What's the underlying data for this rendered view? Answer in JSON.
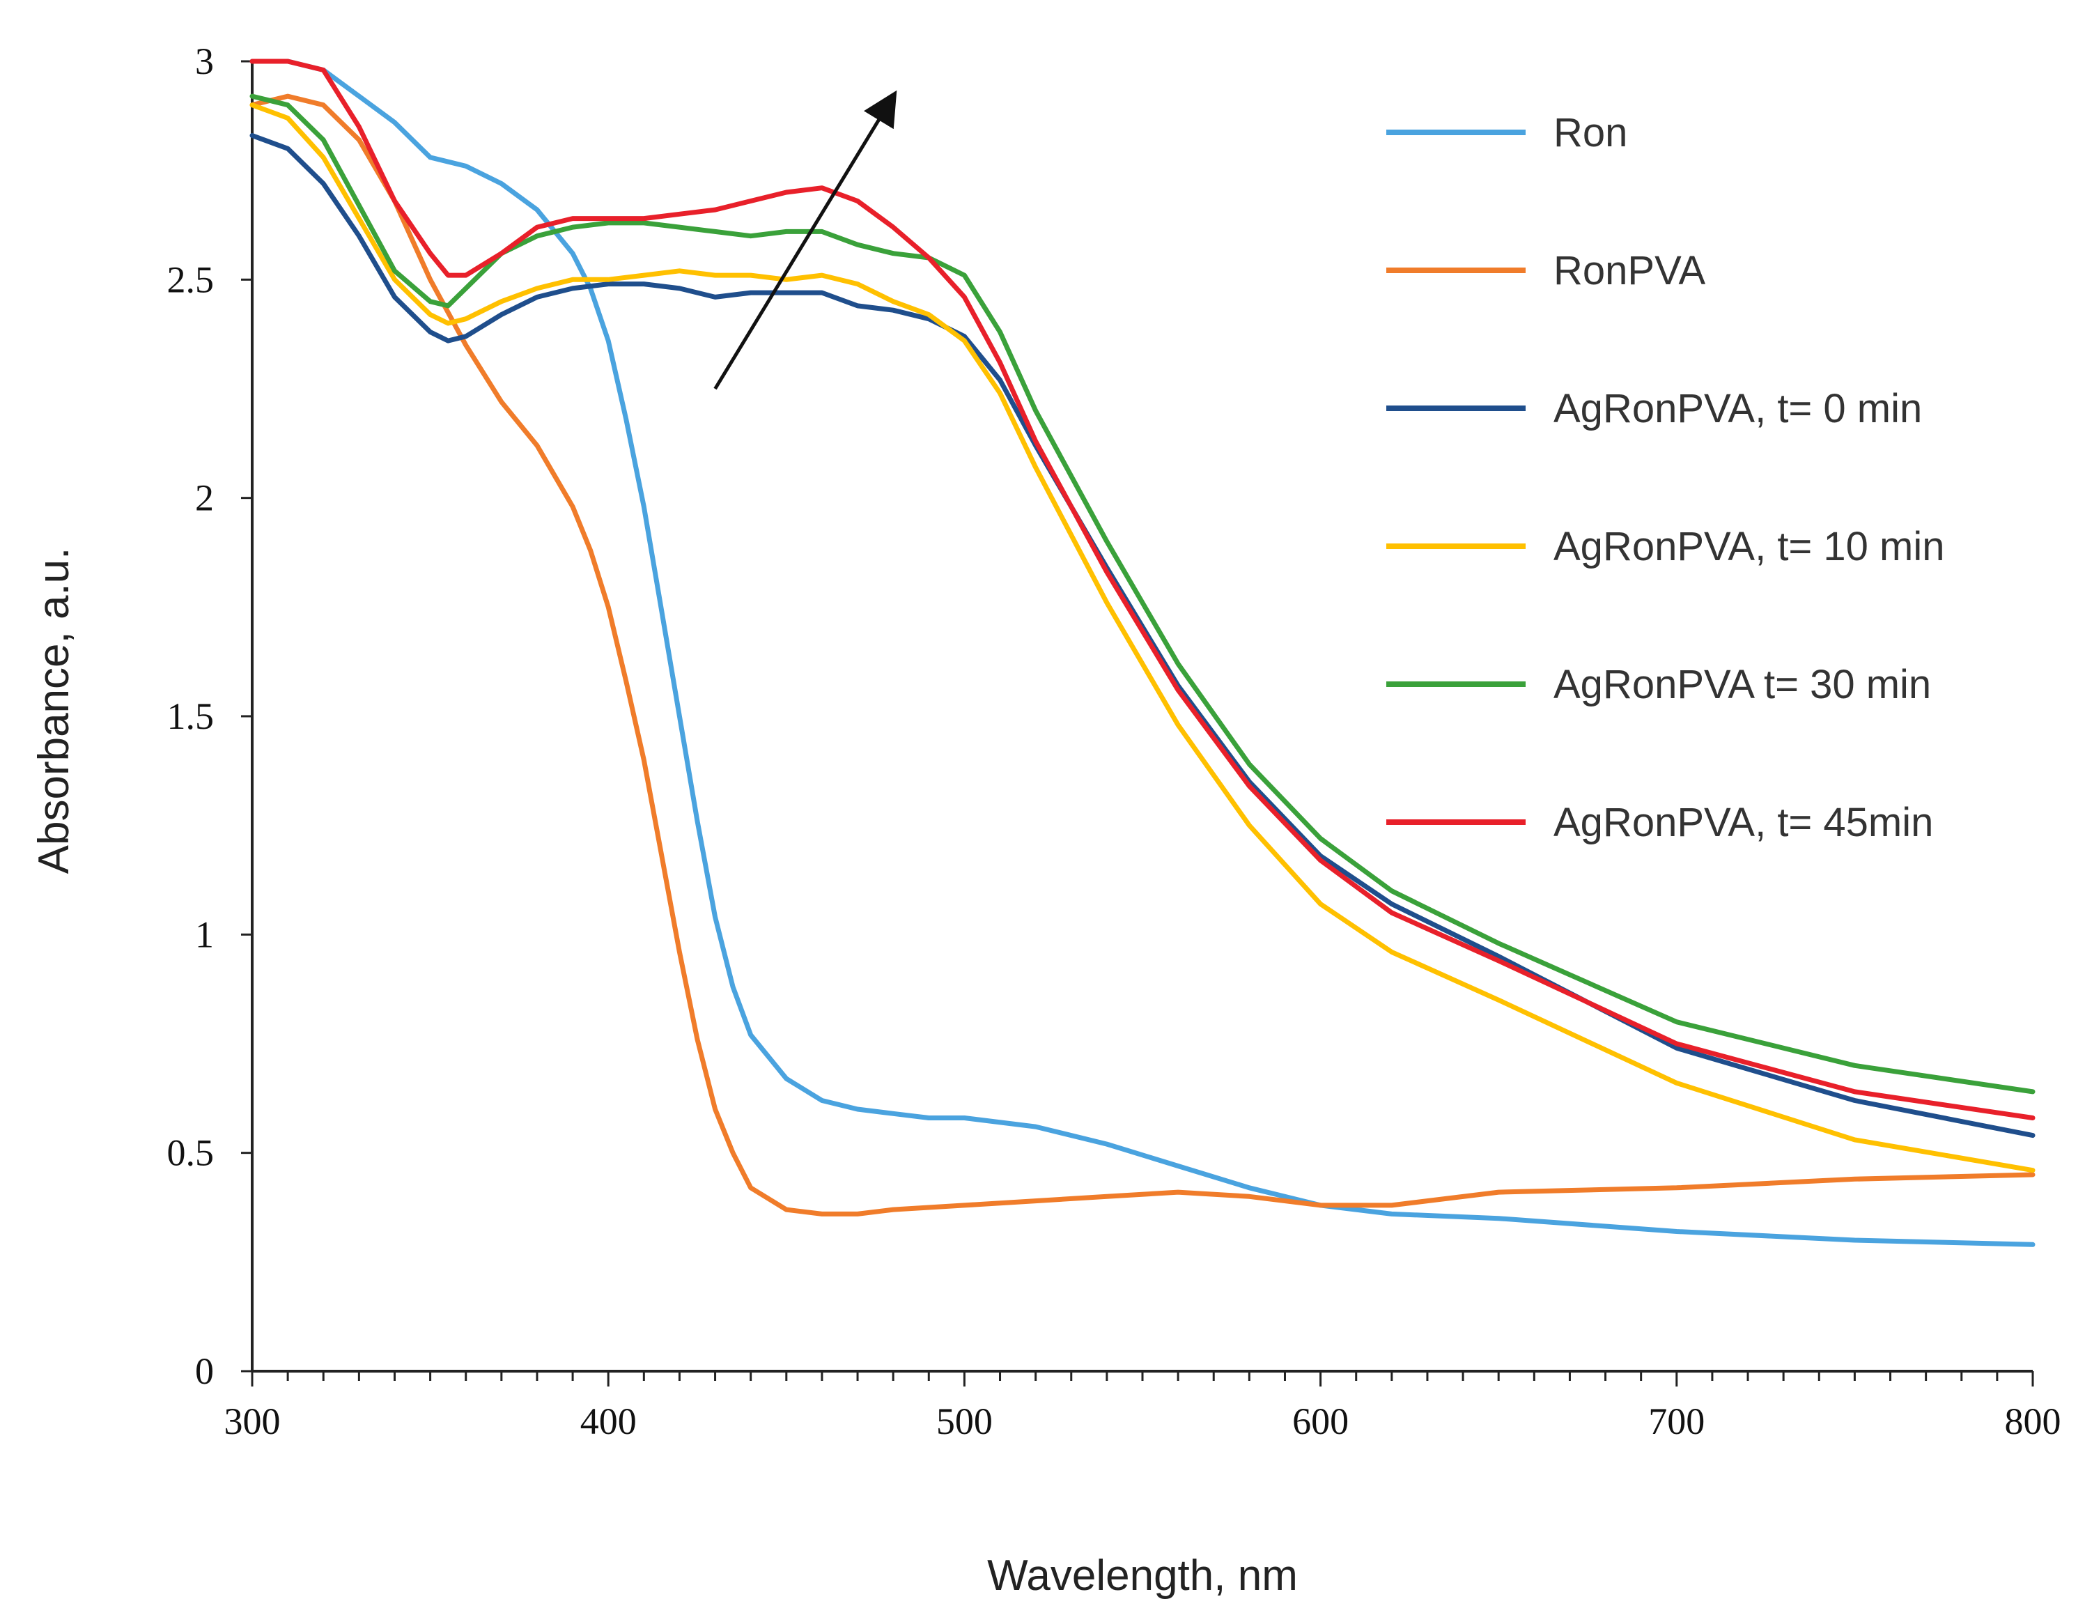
{
  "chart_data": {
    "type": "line",
    "title": "",
    "xlabel": "Wavelength, nm",
    "ylabel": "Absorbance, a.u.",
    "xlim": [
      300,
      800
    ],
    "ylim": [
      0,
      3
    ],
    "xticks": [
      300,
      400,
      500,
      600,
      700,
      800
    ],
    "yticks": [
      0,
      0.5,
      1,
      1.5,
      2,
      2.5,
      3
    ],
    "ytick_labels": [
      "0",
      "0.5",
      "1",
      "1.5",
      "2",
      "2.5",
      "3"
    ],
    "legend_position": "top-right",
    "annotation": {
      "type": "arrow",
      "from": [
        430,
        2.25
      ],
      "to": [
        480,
        2.92
      ]
    },
    "series": [
      {
        "name": "Ron",
        "color": "#4aa3df",
        "x": [
          300,
          310,
          320,
          330,
          340,
          350,
          360,
          370,
          380,
          390,
          395,
          400,
          405,
          410,
          415,
          420,
          425,
          430,
          435,
          440,
          450,
          460,
          470,
          480,
          490,
          500,
          520,
          540,
          560,
          580,
          600,
          620,
          650,
          700,
          750,
          800
        ],
        "y": [
          3.0,
          3.0,
          2.98,
          2.92,
          2.86,
          2.78,
          2.76,
          2.72,
          2.66,
          2.56,
          2.48,
          2.36,
          2.18,
          1.98,
          1.74,
          1.5,
          1.26,
          1.04,
          0.88,
          0.77,
          0.67,
          0.62,
          0.6,
          0.59,
          0.58,
          0.58,
          0.56,
          0.52,
          0.47,
          0.42,
          0.38,
          0.36,
          0.35,
          0.32,
          0.3,
          0.29
        ]
      },
      {
        "name": "RonPVA",
        "color": "#f07c2a",
        "x": [
          300,
          310,
          320,
          330,
          340,
          350,
          360,
          370,
          380,
          390,
          395,
          400,
          405,
          410,
          415,
          420,
          425,
          430,
          435,
          440,
          450,
          460,
          470,
          480,
          500,
          520,
          540,
          560,
          580,
          600,
          620,
          650,
          700,
          750,
          800
        ],
        "y": [
          2.9,
          2.92,
          2.9,
          2.82,
          2.68,
          2.5,
          2.35,
          2.22,
          2.12,
          1.98,
          1.88,
          1.75,
          1.58,
          1.4,
          1.18,
          0.96,
          0.76,
          0.6,
          0.5,
          0.42,
          0.37,
          0.36,
          0.36,
          0.37,
          0.38,
          0.39,
          0.4,
          0.41,
          0.4,
          0.38,
          0.38,
          0.41,
          0.42,
          0.44,
          0.45
        ]
      },
      {
        "name": "AgRonPVA, t= 0 min",
        "color": "#1f4e8c",
        "x": [
          300,
          310,
          320,
          330,
          340,
          350,
          355,
          360,
          370,
          380,
          390,
          400,
          410,
          420,
          430,
          440,
          450,
          460,
          470,
          480,
          490,
          500,
          510,
          520,
          540,
          560,
          580,
          600,
          620,
          650,
          700,
          750,
          800
        ],
        "y": [
          2.83,
          2.8,
          2.72,
          2.6,
          2.46,
          2.38,
          2.36,
          2.37,
          2.42,
          2.46,
          2.48,
          2.49,
          2.49,
          2.48,
          2.46,
          2.47,
          2.47,
          2.47,
          2.44,
          2.43,
          2.41,
          2.37,
          2.27,
          2.12,
          1.84,
          1.57,
          1.35,
          1.18,
          1.07,
          0.95,
          0.74,
          0.62,
          0.54
        ]
      },
      {
        "name": "AgRonPVA, t= 10 min",
        "color": "#ffc000",
        "x": [
          300,
          310,
          320,
          330,
          340,
          350,
          355,
          360,
          370,
          380,
          390,
          400,
          410,
          420,
          430,
          440,
          450,
          460,
          470,
          480,
          490,
          500,
          510,
          520,
          540,
          560,
          580,
          600,
          620,
          650,
          700,
          750,
          800
        ],
        "y": [
          2.9,
          2.87,
          2.78,
          2.64,
          2.5,
          2.42,
          2.4,
          2.41,
          2.45,
          2.48,
          2.5,
          2.5,
          2.51,
          2.52,
          2.51,
          2.51,
          2.5,
          2.51,
          2.49,
          2.45,
          2.42,
          2.36,
          2.24,
          2.07,
          1.76,
          1.48,
          1.25,
          1.07,
          0.96,
          0.85,
          0.66,
          0.53,
          0.46
        ]
      },
      {
        "name": "AgRonPVA t= 30 min",
        "color": "#3aa13a",
        "x": [
          300,
          310,
          320,
          330,
          340,
          350,
          355,
          360,
          370,
          380,
          390,
          400,
          410,
          420,
          430,
          440,
          450,
          460,
          470,
          480,
          490,
          500,
          510,
          520,
          540,
          560,
          580,
          600,
          620,
          650,
          700,
          750,
          800
        ],
        "y": [
          2.92,
          2.9,
          2.82,
          2.67,
          2.52,
          2.45,
          2.44,
          2.48,
          2.56,
          2.6,
          2.62,
          2.63,
          2.63,
          2.62,
          2.61,
          2.6,
          2.61,
          2.61,
          2.58,
          2.56,
          2.55,
          2.51,
          2.38,
          2.2,
          1.9,
          1.62,
          1.39,
          1.22,
          1.1,
          0.98,
          0.8,
          0.7,
          0.64
        ]
      },
      {
        "name": "AgRonPVA, t= 45min",
        "color": "#e8202a",
        "x": [
          300,
          310,
          320,
          330,
          340,
          350,
          355,
          360,
          370,
          380,
          390,
          400,
          410,
          420,
          430,
          440,
          450,
          460,
          470,
          480,
          490,
          500,
          510,
          520,
          540,
          560,
          580,
          600,
          620,
          650,
          700,
          750,
          800
        ],
        "y": [
          3.05,
          3.02,
          2.98,
          2.85,
          2.68,
          2.56,
          2.51,
          2.51,
          2.56,
          2.62,
          2.64,
          2.64,
          2.64,
          2.65,
          2.66,
          2.68,
          2.7,
          2.71,
          2.68,
          2.62,
          2.55,
          2.46,
          2.31,
          2.13,
          1.83,
          1.56,
          1.34,
          1.17,
          1.05,
          0.94,
          0.75,
          0.64,
          0.58
        ]
      }
    ]
  }
}
